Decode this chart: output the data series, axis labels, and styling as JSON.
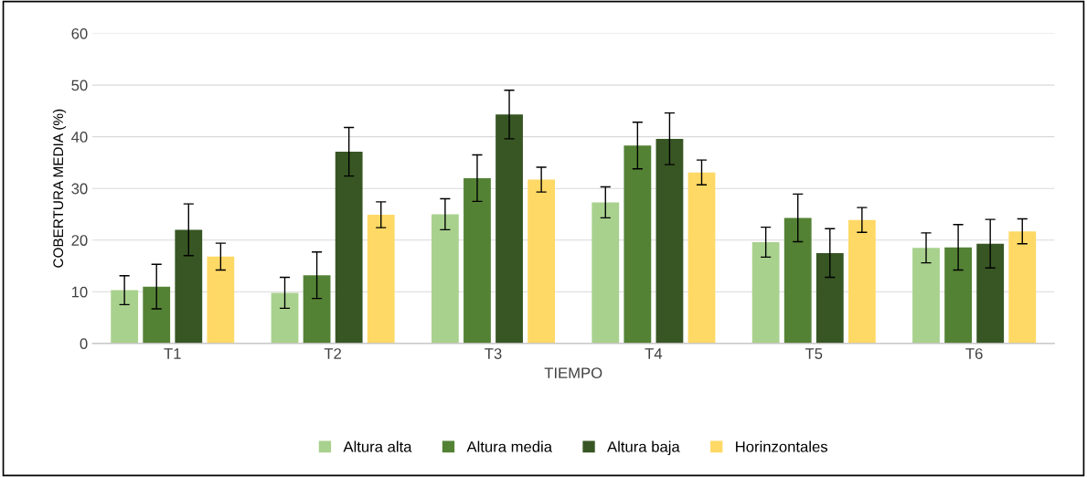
{
  "chart_data": {
    "type": "bar",
    "xlabel": "TIEMPO",
    "ylabel": "COBERTURA MEDIA (%)",
    "categories": [
      "T1",
      "T2",
      "T3",
      "T4",
      "T5",
      "T6"
    ],
    "series": [
      {
        "name": "Altura alta",
        "color": "#a9d18e",
        "values": [
          10.3,
          9.8,
          25,
          27.3,
          19.6,
          18.5
        ],
        "errors": [
          2.8,
          3,
          3,
          3,
          2.9,
          2.9
        ]
      },
      {
        "name": "Altura media",
        "color": "#548235",
        "values": [
          11,
          13.2,
          32,
          38.3,
          24.3,
          18.6
        ],
        "errors": [
          4.3,
          4.5,
          4.5,
          4.5,
          4.6,
          4.4
        ]
      },
      {
        "name": "Altura baja",
        "color": "#375623",
        "values": [
          22,
          37.1,
          44.3,
          39.6,
          17.5,
          19.3
        ],
        "errors": [
          5,
          4.7,
          4.7,
          5,
          4.7,
          4.7
        ]
      },
      {
        "name": "Horinzontales",
        "color": "#ffd966",
        "values": [
          16.8,
          24.9,
          31.7,
          33.1,
          23.9,
          21.7
        ],
        "errors": [
          2.6,
          2.5,
          2.4,
          2.4,
          2.4,
          2.4
        ]
      }
    ],
    "ylim": [
      0,
      60
    ],
    "yticks": [
      0,
      10,
      20,
      30,
      40,
      50,
      60
    ],
    "grid": "y",
    "legend": "bottom"
  }
}
